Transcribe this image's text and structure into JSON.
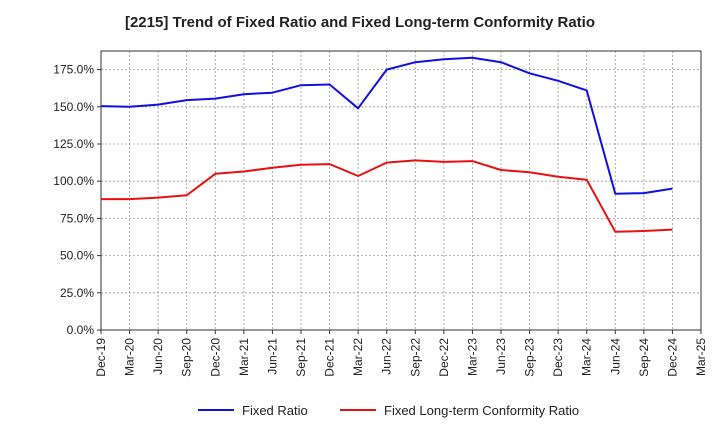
{
  "chart_data": {
    "type": "line",
    "title": "[2215]  Trend of Fixed Ratio and Fixed Long-term Conformity Ratio",
    "xlabel": "",
    "ylabel": "",
    "ylim": [
      0,
      187.5
    ],
    "yticks": [
      "0.0%",
      "25.0%",
      "50.0%",
      "75.0%",
      "100.0%",
      "125.0%",
      "150.0%",
      "175.0%"
    ],
    "ytick_values": [
      0,
      25,
      50,
      75,
      100,
      125,
      150,
      175
    ],
    "categories": [
      "Dec-19",
      "Mar-20",
      "Jun-20",
      "Sep-20",
      "Dec-20",
      "Mar-21",
      "Jun-21",
      "Sep-21",
      "Dec-21",
      "Mar-22",
      "Jun-22",
      "Sep-22",
      "Dec-22",
      "Mar-23",
      "Jun-23",
      "Sep-23",
      "Dec-23",
      "Mar-24",
      "Jun-24",
      "Sep-24",
      "Dec-24",
      "Mar-25"
    ],
    "grid": true,
    "legend_position": "bottom",
    "series": [
      {
        "name": "Fixed Ratio",
        "color": "#1010e0",
        "values": [
          150.5,
          150.0,
          151.5,
          154.5,
          155.5,
          158.5,
          159.5,
          164.5,
          165.0,
          149.0,
          175.0,
          180.0,
          182.0,
          183.0,
          180.0,
          172.5,
          167.5,
          161.0,
          91.5,
          92.0,
          95.0,
          null
        ]
      },
      {
        "name": "Fixed Long-term Conformity Ratio",
        "color": "#e81010",
        "values": [
          88.0,
          88.0,
          89.0,
          90.5,
          105.0,
          106.5,
          109.0,
          111.0,
          111.5,
          103.5,
          112.5,
          114.0,
          113.0,
          113.5,
          107.5,
          106.0,
          103.0,
          101.0,
          66.0,
          66.5,
          67.5,
          null
        ]
      }
    ]
  }
}
